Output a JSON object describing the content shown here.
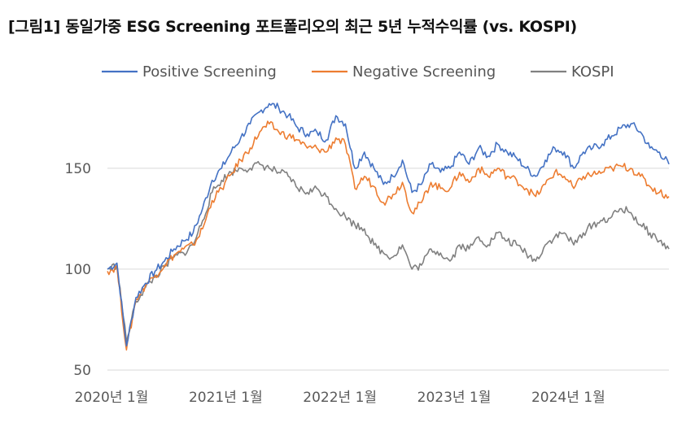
{
  "title": "[그림1] 동일가중 ESG Screening 포트폴리오의 최근 5년 누적수익률 (vs. KOSPI)",
  "chart_data": {
    "type": "line",
    "title": "[그림1] 동일가중 ESG Screening 포트폴리오의 최근 5년 누적수익률 (vs. KOSPI)",
    "xlabel": "",
    "ylabel": "",
    "ylim": [
      50,
      185
    ],
    "y_ticks": [
      50,
      100,
      150
    ],
    "x_ticks": [
      "2020년 1월",
      "2021년 1월",
      "2022년 1월",
      "2023년 1월",
      "2024년 1월"
    ],
    "x_range": [
      "2020-01",
      "2024-12"
    ],
    "grid": "horizontal",
    "legend_position": "top",
    "x": [
      "2020-01",
      "2020-02",
      "2020-03",
      "2020-04",
      "2020-05",
      "2020-06",
      "2020-07",
      "2020-08",
      "2020-09",
      "2020-10",
      "2020-11",
      "2020-12",
      "2021-01",
      "2021-02",
      "2021-03",
      "2021-04",
      "2021-05",
      "2021-06",
      "2021-07",
      "2021-08",
      "2021-09",
      "2021-10",
      "2021-11",
      "2021-12",
      "2022-01",
      "2022-02",
      "2022-03",
      "2022-04",
      "2022-05",
      "2022-06",
      "2022-07",
      "2022-08",
      "2022-09",
      "2022-10",
      "2022-11",
      "2022-12",
      "2023-01",
      "2023-02",
      "2023-03",
      "2023-04",
      "2023-05",
      "2023-06",
      "2023-07",
      "2023-08",
      "2023-09",
      "2023-10",
      "2023-11",
      "2023-12",
      "2024-01",
      "2024-02",
      "2024-03",
      "2024-04",
      "2024-05",
      "2024-06",
      "2024-07",
      "2024-08",
      "2024-09",
      "2024-10",
      "2024-11",
      "2024-12"
    ],
    "series": [
      {
        "name": "Positive Screening",
        "color": "#4472C4",
        "values": [
          100,
          103,
          62,
          86,
          93,
          99,
          104,
          110,
          114,
          118,
          130,
          144,
          150,
          158,
          165,
          172,
          178,
          182,
          180,
          176,
          170,
          167,
          168,
          164,
          176,
          172,
          150,
          158,
          150,
          142,
          146,
          154,
          138,
          142,
          152,
          148,
          150,
          158,
          152,
          160,
          156,
          162,
          158,
          155,
          150,
          146,
          154,
          160,
          158,
          150,
          158,
          160,
          162,
          166,
          170,
          172,
          168,
          160,
          158,
          152
        ]
      },
      {
        "name": "Negative Screening",
        "color": "#ED7D31",
        "values": [
          99,
          101,
          60,
          85,
          92,
          97,
          102,
          107,
          110,
          112,
          120,
          134,
          140,
          147,
          154,
          160,
          168,
          172,
          168,
          166,
          164,
          160,
          160,
          158,
          165,
          162,
          140,
          146,
          141,
          133,
          137,
          143,
          128,
          133,
          143,
          140,
          140,
          148,
          143,
          150,
          146,
          150,
          146,
          144,
          140,
          136,
          142,
          148,
          146,
          140,
          146,
          147,
          148,
          150,
          151,
          150,
          146,
          141,
          138,
          136
        ]
      },
      {
        "name": "KOSPI",
        "color": "#808080",
        "values": [
          100,
          102,
          64,
          84,
          91,
          96,
          101,
          106,
          108,
          112,
          124,
          138,
          144,
          148,
          150,
          150,
          152,
          150,
          148,
          146,
          140,
          138,
          140,
          136,
          130,
          126,
          122,
          120,
          112,
          108,
          106,
          112,
          100,
          102,
          110,
          108,
          104,
          112,
          110,
          116,
          112,
          118,
          114,
          112,
          108,
          104,
          112,
          116,
          118,
          112,
          118,
          122,
          124,
          126,
          130,
          128,
          122,
          118,
          114,
          110
        ]
      }
    ]
  }
}
